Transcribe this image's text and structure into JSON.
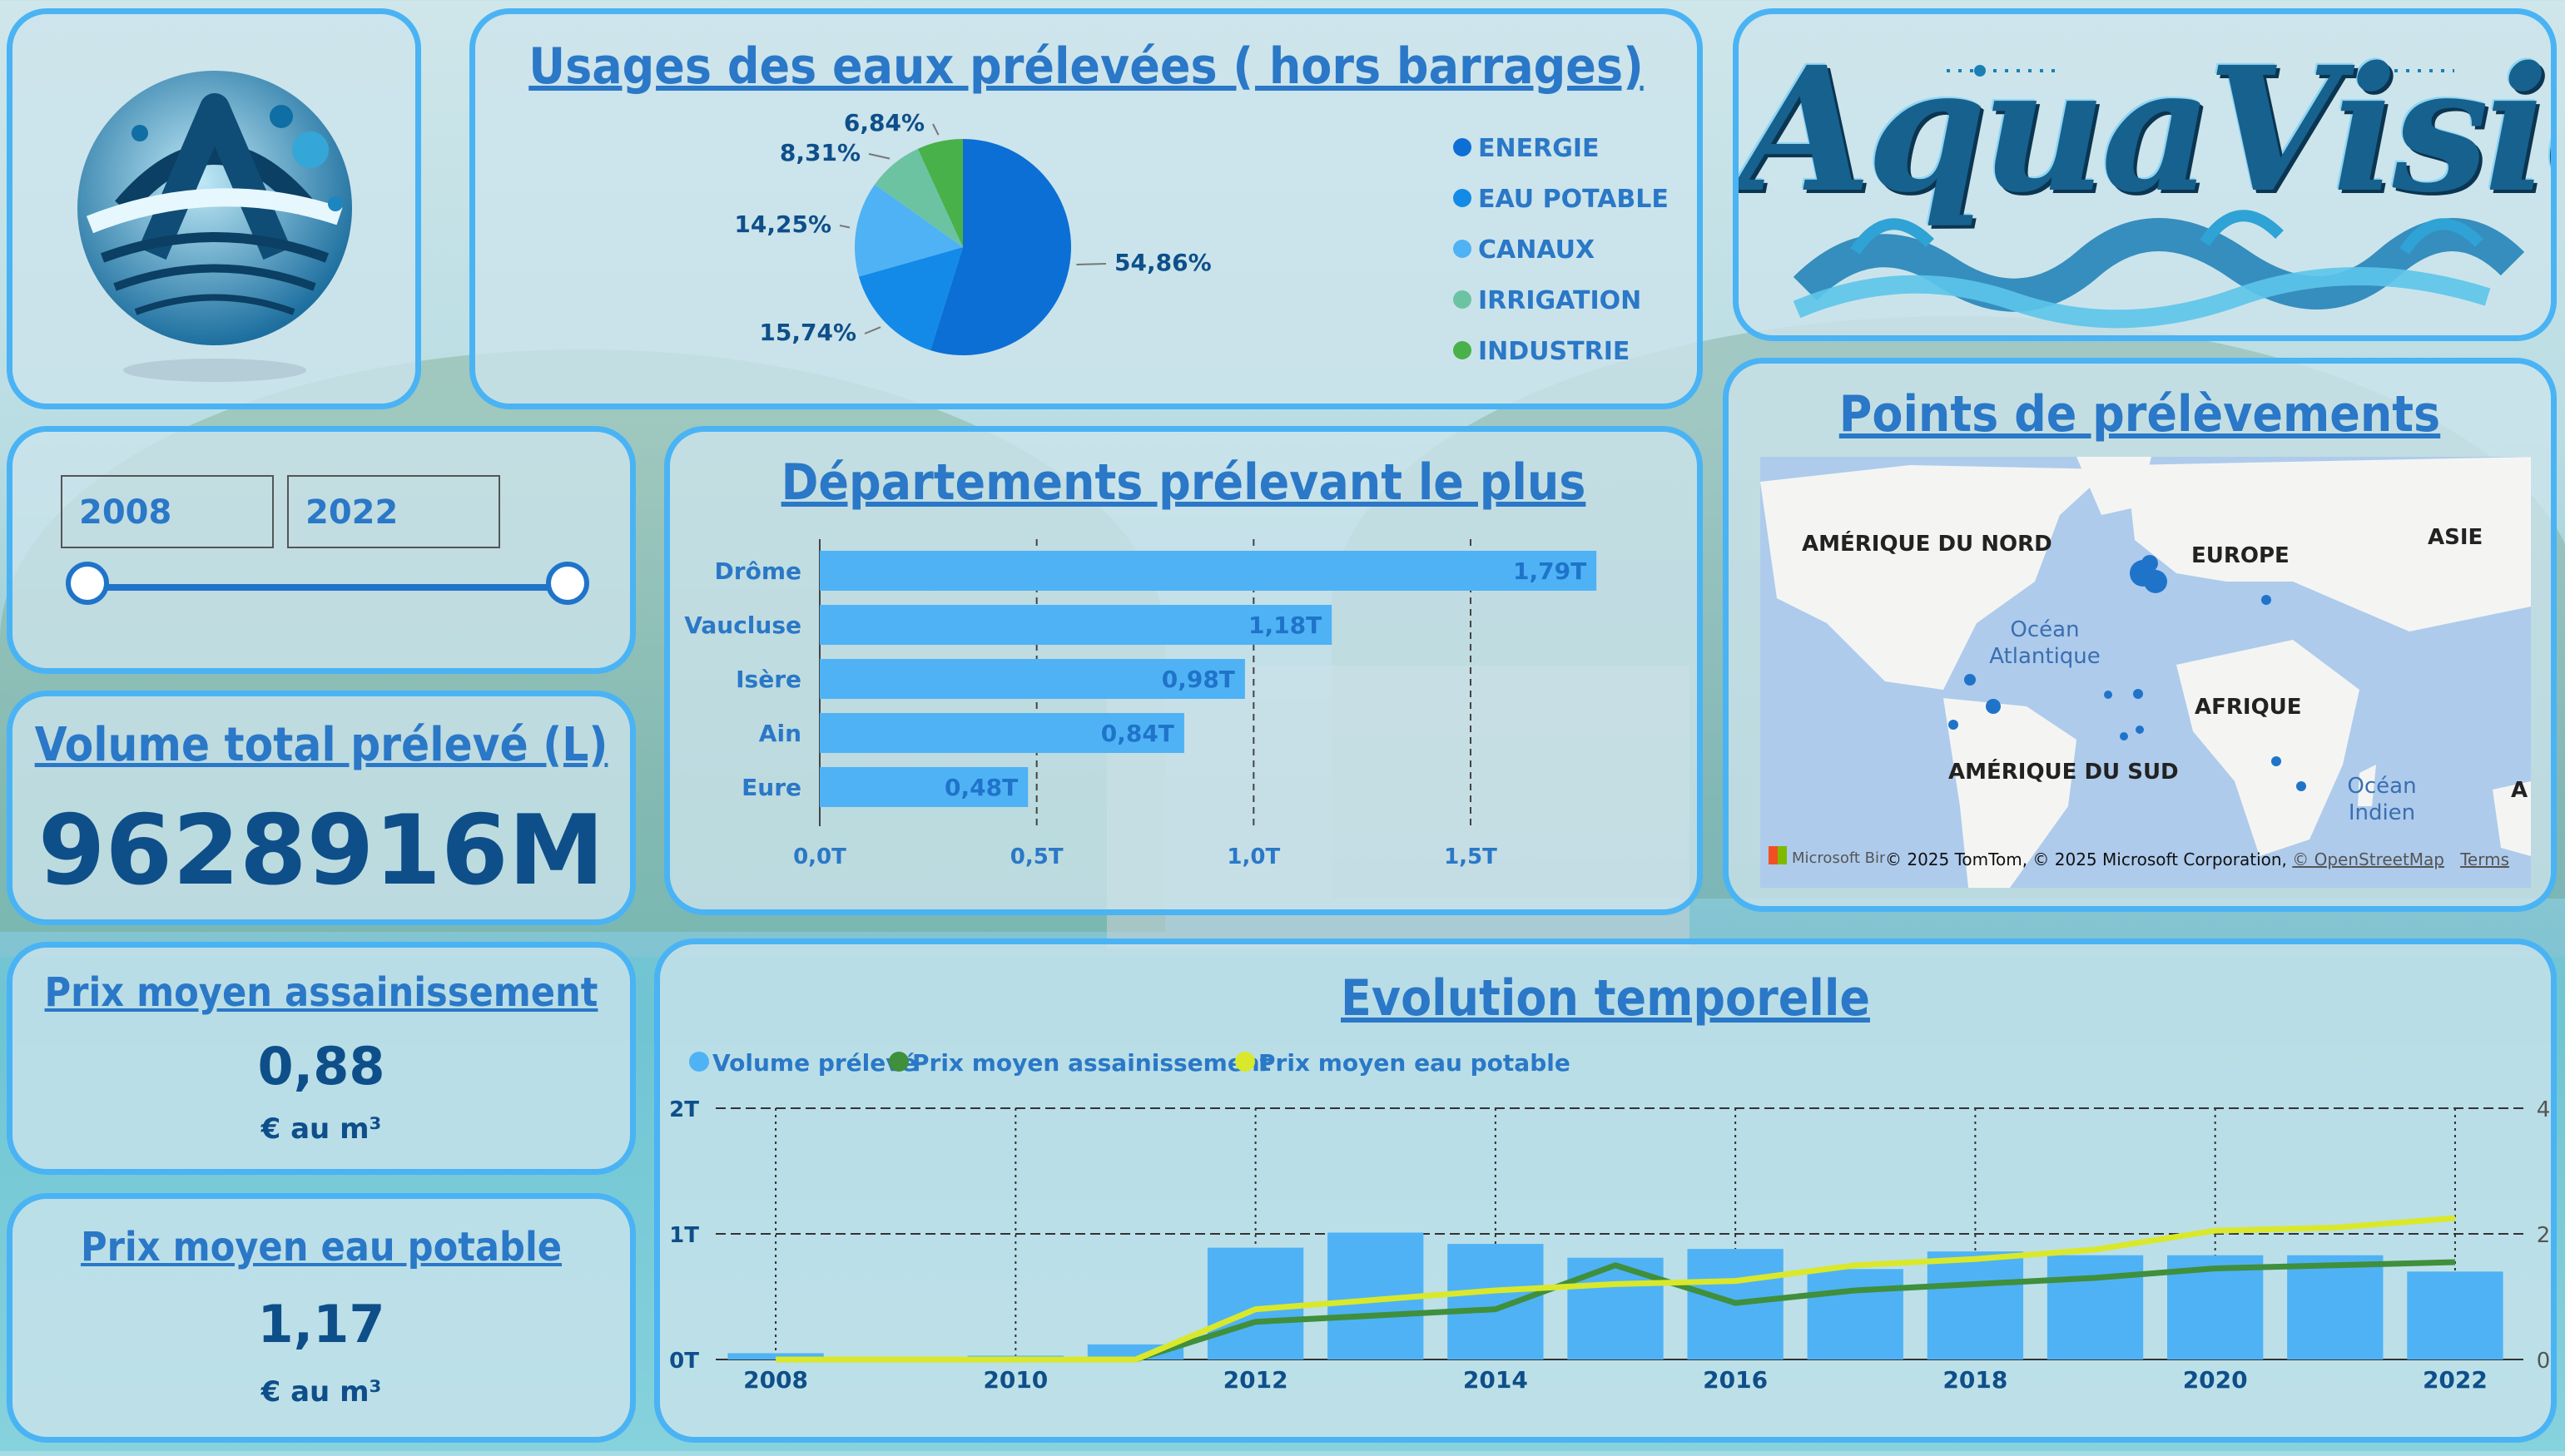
{
  "brand": {
    "name": "AquaVision",
    "logo_mark": "water-logo-icon"
  },
  "colors": {
    "accent": "#4ab3f4",
    "title": "#2a78c7",
    "value": "#0e4f8a"
  },
  "year_slicer": {
    "start": "2008",
    "end": "2022"
  },
  "kpi_volume": {
    "title": "Volume total prélevé (L)",
    "value": "9628916M"
  },
  "kpi_sanitation": {
    "title": "Prix moyen assainissement",
    "value": "0,88",
    "unit": "€ au m³"
  },
  "kpi_drinking": {
    "title": "Prix moyen eau potable",
    "value": "1,17",
    "unit": "€ au m³"
  },
  "pie": {
    "title": "Usages des eaux prélevées ( hors barrages)"
  },
  "bar": {
    "title": "Départements prélevant le plus"
  },
  "map": {
    "title": "Points de prélèvements",
    "labels": {
      "north_america": "AMÉRIQUE DU NORD",
      "europe": "EUROPE",
      "asia": "ASIE",
      "atlantic": "Océan Atlantique",
      "africa": "AFRIQUE",
      "south_america": "AMÉRIQUE DU SUD",
      "indian": "Océan Indien",
      "a": "A"
    },
    "attribution": "© 2025 TomTom, © 2025 Microsoft Corporation,",
    "osm_link": "© OpenStreetMap",
    "terms_link": "Terms",
    "provider": "Microsoft Bing"
  },
  "line": {
    "title": "Evolution temporelle"
  },
  "chart_data": [
    {
      "type": "pie",
      "title": "Usages des eaux prélevées ( hors barrages)",
      "categories": [
        "ENERGIE",
        "EAU POTABLE",
        "CANAUX",
        "IRRIGATION",
        "INDUSTRIE"
      ],
      "values": [
        54.86,
        15.74,
        14.25,
        8.31,
        6.84
      ],
      "value_labels": [
        "54,86%",
        "15,74%",
        "14,25%",
        "8,31%",
        "6,84%"
      ],
      "colors": [
        "#0b6fd6",
        "#138ae8",
        "#4fb2f5",
        "#6cc3a2",
        "#48b14a"
      ],
      "legend": "right"
    },
    {
      "type": "bar",
      "orientation": "horizontal",
      "title": "Départements prélevant le plus",
      "categories": [
        "Drôme",
        "Vaucluse",
        "Isère",
        "Ain",
        "Eure"
      ],
      "values": [
        1.79,
        1.18,
        0.98,
        0.84,
        0.48
      ],
      "value_labels": [
        "1,79T",
        "1,18T",
        "0,98T",
        "0,84T",
        "0,48T"
      ],
      "xticks": [
        "0,0T",
        "0,5T",
        "1,0T",
        "1,5T"
      ],
      "xlim": [
        0,
        1.8
      ],
      "color": "#4fb2f5",
      "grid": true
    },
    {
      "type": "bar+line",
      "title": "Evolution temporelle",
      "x": [
        2008,
        2009,
        2010,
        2011,
        2012,
        2013,
        2014,
        2015,
        2016,
        2017,
        2018,
        2019,
        2020,
        2021,
        2022
      ],
      "xticks": [
        "2008",
        "2010",
        "2012",
        "2014",
        "2016",
        "2018",
        "2020",
        "2022"
      ],
      "series": [
        {
          "name": "Volume prélevé",
          "kind": "bar",
          "axis": "left",
          "color": "#4fb2f5",
          "values": [
            0.05,
            0.02,
            0.03,
            0.12,
            0.89,
            1.01,
            0.92,
            0.81,
            0.88,
            0.72,
            0.86,
            0.83,
            0.83,
            0.83,
            0.7
          ]
        },
        {
          "name": "Prix moyen assainissement",
          "kind": "line",
          "axis": "right",
          "color": "#3f8f3c",
          "values": [
            0.0,
            0.0,
            0.0,
            0.0,
            0.6,
            0.7,
            0.8,
            1.5,
            0.9,
            1.1,
            1.2,
            1.3,
            1.45,
            1.5,
            1.55
          ]
        },
        {
          "name": "Prix moyen eau potable",
          "kind": "line",
          "axis": "right",
          "color": "#d9e82b",
          "values": [
            0.0,
            0.0,
            0.0,
            0.0,
            0.8,
            0.95,
            1.1,
            1.2,
            1.25,
            1.5,
            1.6,
            1.75,
            2.05,
            2.1,
            2.25
          ]
        }
      ],
      "yleft_ticks": [
        "0T",
        "1T",
        "2T"
      ],
      "yleft_lim": [
        0,
        2
      ],
      "yright_ticks": [
        "0",
        "2",
        "4"
      ],
      "yright_lim": [
        0,
        4
      ],
      "legend": "top-left"
    }
  ]
}
